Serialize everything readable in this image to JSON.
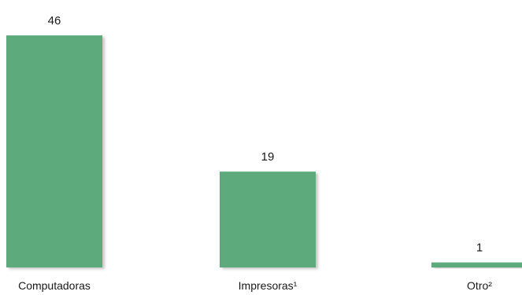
{
  "chart_data": {
    "type": "bar",
    "categories": [
      "Computadoras",
      "Impresoras¹",
      "Otro²"
    ],
    "values": [
      46,
      19,
      1
    ],
    "title": "",
    "xlabel": "",
    "ylabel": "",
    "ylim": [
      0,
      46
    ],
    "grid": false,
    "legend": "none",
    "bar_color": "#5dab7c",
    "shadow_color": "#c8c8c8"
  }
}
